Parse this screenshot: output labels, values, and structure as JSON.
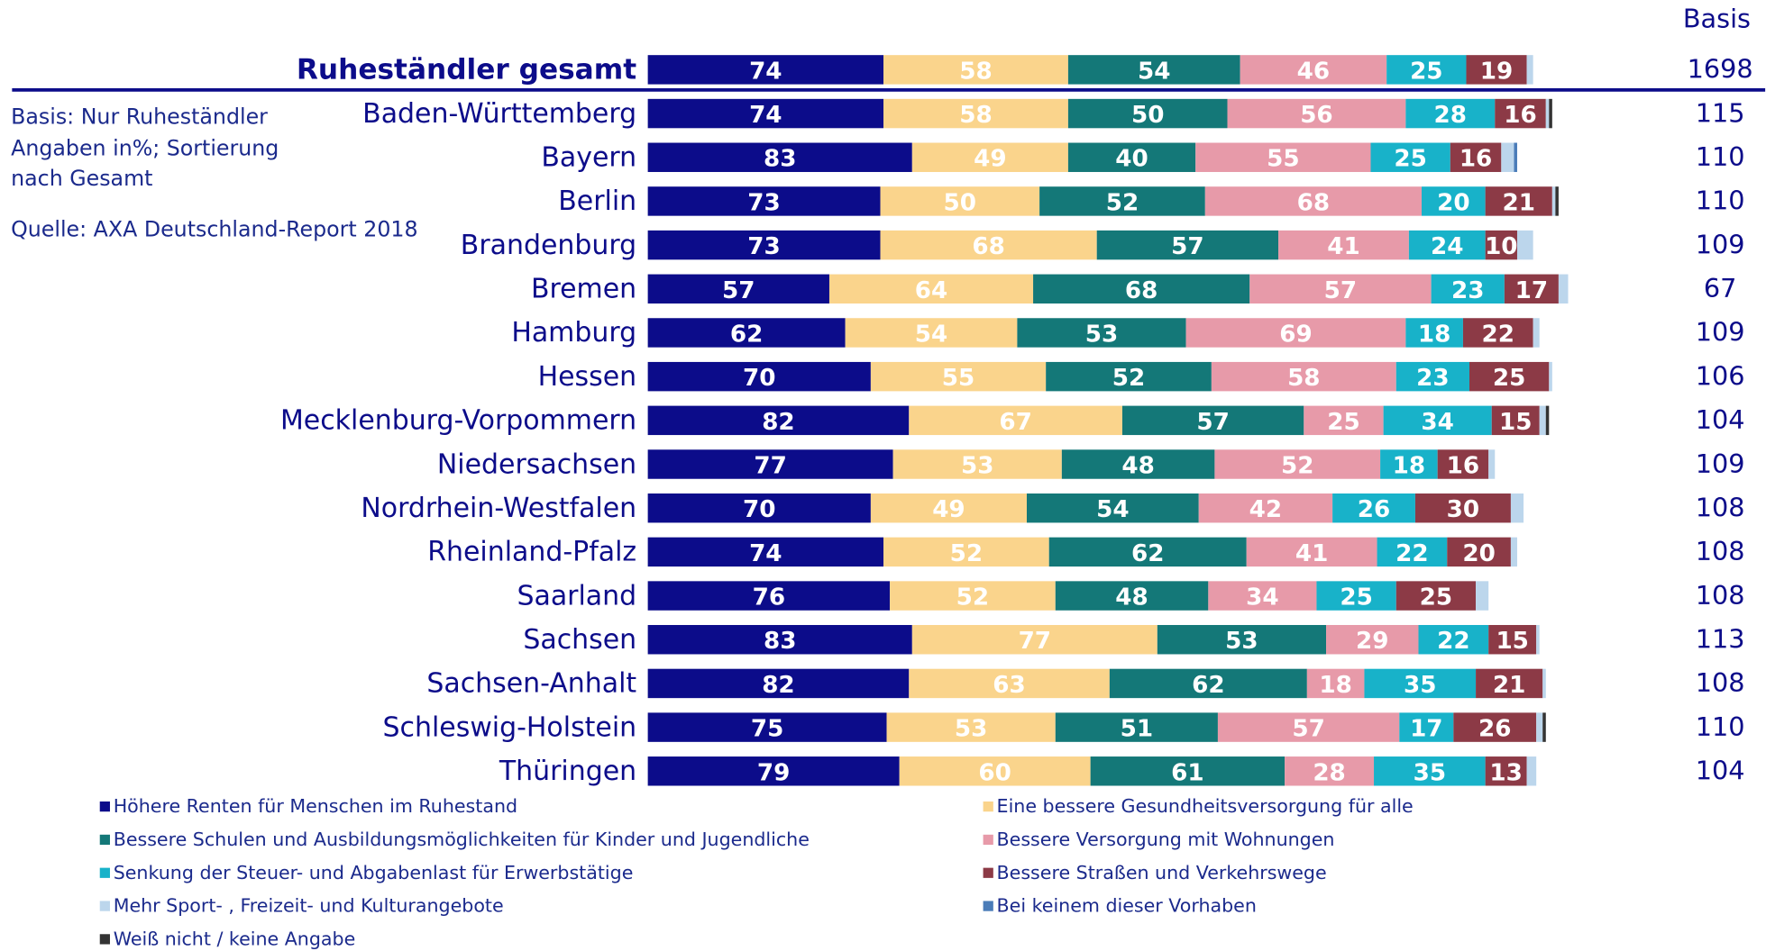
{
  "chart_data": {
    "type": "bar",
    "orientation": "horizontal",
    "stacked": true,
    "categories": [
      "Ruheständler gesamt",
      "Baden-Württemberg",
      "Bayern",
      "Berlin",
      "Brandenburg",
      "Bremen",
      "Hamburg",
      "Hessen",
      "Mecklenburg-Vorpommern",
      "Niedersachsen",
      "Nordrhein-Westfalen",
      "Rheinland-Pfalz",
      "Saarland",
      "Sachsen",
      "Sachsen-Anhalt",
      "Schleswig-Holstein",
      "Thüringen"
    ],
    "series": [
      {
        "name": "Höhere Renten für Menschen im Ruhestand",
        "color": "#0c0c8a",
        "values": [
          74,
          74,
          83,
          73,
          73,
          57,
          62,
          70,
          82,
          77,
          70,
          74,
          76,
          83,
          82,
          75,
          79
        ]
      },
      {
        "name": "Eine bessere Gesundheitsversorgung für alle",
        "color": "#fad48c",
        "values": [
          58,
          58,
          49,
          50,
          68,
          64,
          54,
          55,
          67,
          53,
          49,
          52,
          52,
          77,
          63,
          53,
          60
        ]
      },
      {
        "name": "Bessere Schulen und Ausbildungsmöglichkeiten für Kinder und Jugendliche",
        "color": "#147878",
        "values": [
          54,
          50,
          40,
          52,
          57,
          68,
          53,
          52,
          57,
          48,
          54,
          62,
          48,
          53,
          62,
          51,
          61
        ]
      },
      {
        "name": "Bessere Versorgung mit Wohnungen",
        "color": "#e79aa9",
        "values": [
          46,
          56,
          55,
          68,
          41,
          57,
          69,
          58,
          25,
          52,
          42,
          41,
          34,
          29,
          18,
          57,
          28
        ]
      },
      {
        "name": "Senkung der Steuer- und Abgabenlast für Erwerbstätige",
        "color": "#18b2c9",
        "values": [
          25,
          28,
          25,
          20,
          24,
          23,
          18,
          23,
          34,
          18,
          26,
          22,
          25,
          22,
          35,
          17,
          35
        ]
      },
      {
        "name": "Bessere Straßen und Verkehrswege",
        "color": "#8c3a46",
        "values": [
          19,
          16,
          16,
          21,
          10,
          17,
          22,
          25,
          15,
          16,
          30,
          20,
          25,
          15,
          21,
          26,
          13
        ]
      },
      {
        "name": "Mehr Sport- , Freizeit- und Kulturangebote",
        "color": "#bcd6ec",
        "values": [
          2,
          1,
          4,
          1,
          5,
          3,
          2,
          1,
          2,
          2,
          4,
          2,
          4,
          1,
          1,
          2,
          3
        ]
      },
      {
        "name": "Bei keinem dieser Vorhaben",
        "color": "#4a7cb8",
        "values": [
          0,
          0,
          1,
          0,
          0,
          0,
          0,
          0,
          0,
          0,
          0,
          0,
          0,
          0,
          0,
          0,
          0
        ]
      },
      {
        "name": "Weiß nicht / keine Angabe",
        "color": "#333333",
        "values": [
          0,
          1,
          0,
          1,
          0,
          0,
          0,
          0,
          1,
          0,
          0,
          0,
          0,
          0,
          0,
          1,
          0
        ]
      }
    ],
    "xlim": [
      0,
      300
    ],
    "basis_title": "Basis",
    "basis": [
      1698,
      115,
      110,
      110,
      109,
      67,
      109,
      106,
      104,
      109,
      108,
      108,
      108,
      113,
      108,
      110,
      104
    ],
    "notes": [
      "Basis: Nur Ruheständler",
      "Angaben in%; Sortierung",
      "nach Gesamt",
      "Quelle: AXA Deutschland-Report 2018"
    ]
  }
}
